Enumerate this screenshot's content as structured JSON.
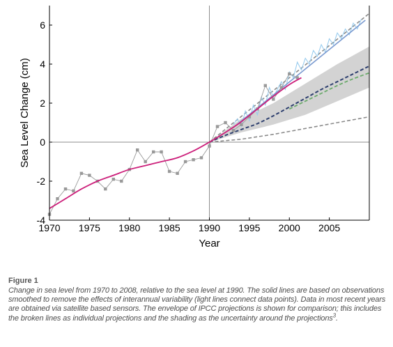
{
  "chart_data": {
    "type": "line",
    "title": "",
    "xlabel": "Year",
    "ylabel": "Sea Level Change (cm)",
    "xlim": [
      1970,
      2010
    ],
    "ylim": [
      -4,
      7
    ],
    "xticks": [
      1970,
      1975,
      1980,
      1985,
      1990,
      1995,
      2000,
      2005
    ],
    "yticks": [
      -4,
      -2,
      0,
      2,
      4,
      6
    ],
    "grid": false,
    "reference_lines": {
      "x": 1990,
      "y": 0
    },
    "colors": {
      "tide_gauge_points": "#999999",
      "tide_gauge_smoothed": "#cc1f7a",
      "satellite_data": "#99ccee",
      "satellite_trend": "#7a9ad0",
      "projection_mid": "#2d3f6e",
      "projection_green": "#6aaa6a",
      "projection_grey": "#8a8a8a",
      "uncertainty_band": "#d3d3d3"
    },
    "series": [
      {
        "type": "points",
        "x": [
          1970,
          1971,
          1972,
          1973,
          1974,
          1975,
          1976,
          1977,
          1978,
          1979,
          1980,
          1981,
          1982,
          1983,
          1984,
          1985,
          1986,
          1987,
          1988,
          1989,
          1990,
          1991,
          1992,
          1993,
          1994,
          1995,
          1996,
          1997,
          1998,
          1999,
          2000,
          2001
        ],
        "y": [
          -3.7,
          -2.9,
          -2.4,
          -2.5,
          -1.6,
          -1.7,
          -2.0,
          -2.4,
          -1.9,
          -2.0,
          -1.4,
          -0.4,
          -1.0,
          -0.5,
          -0.5,
          -1.5,
          -1.6,
          -1.0,
          -0.9,
          -0.8,
          -0.2,
          0.8,
          1.0,
          0.6,
          0.9,
          1.3,
          1.7,
          2.9,
          2.2,
          2.8,
          3.5,
          3.3
        ]
      },
      {
        "type": "smooth",
        "x": [
          1970,
          1972,
          1974,
          1976,
          1978,
          1980,
          1982,
          1984,
          1986,
          1988,
          1990,
          1992,
          1994,
          1996,
          1998,
          2000,
          2001.5
        ],
        "y": [
          -3.4,
          -2.9,
          -2.4,
          -2.0,
          -1.7,
          -1.4,
          -1.2,
          -1.0,
          -0.8,
          -0.45,
          0.0,
          0.5,
          1.05,
          1.7,
          2.35,
          2.95,
          3.3
        ]
      },
      {
        "type": "satellite",
        "x": [
          1993,
          1993.5,
          1994,
          1994.5,
          1995,
          1995.5,
          1996,
          1996.5,
          1997,
          1997.5,
          1998,
          1998.5,
          1999,
          1999.5,
          2000,
          2000.5,
          2001,
          2001.5,
          2002,
          2002.5,
          2003,
          2003.5,
          2004,
          2004.5,
          2005,
          2005.5,
          2006,
          2006.5,
          2007,
          2007.5,
          2008,
          2008.5,
          2009
        ],
        "y": [
          0.9,
          1.2,
          0.8,
          1.6,
          1.1,
          1.9,
          1.4,
          2.3,
          1.9,
          2.8,
          2.3,
          2.7,
          3.1,
          2.7,
          3.6,
          3.3,
          4.1,
          3.7,
          4.3,
          4.0,
          4.7,
          4.4,
          5.0,
          4.6,
          5.3,
          5.0,
          5.6,
          5.3,
          5.8,
          5.5,
          6.1,
          5.8,
          6.3
        ]
      },
      {
        "type": "satellite_trend",
        "x": [
          1993,
          2009.5
        ],
        "y": [
          0.75,
          6.25
        ]
      },
      {
        "type": "projection_upper_dashed",
        "x": [
          1990,
          2010
        ],
        "y": [
          0.0,
          6.6
        ]
      },
      {
        "type": "projection_mid_dashed",
        "x": [
          1990,
          1992,
          1994,
          1996,
          1998,
          2000,
          2002,
          2004,
          2006,
          2008,
          2010
        ],
        "y": [
          0.0,
          0.35,
          0.65,
          0.95,
          1.35,
          1.8,
          2.25,
          2.7,
          3.1,
          3.5,
          3.9
        ]
      },
      {
        "type": "projection_green_dashed",
        "x": [
          2000,
          2002,
          2004,
          2006,
          2008,
          2010
        ],
        "y": [
          1.7,
          2.1,
          2.5,
          2.9,
          3.25,
          3.55
        ]
      },
      {
        "type": "projection_lower_dashed",
        "x": [
          1990,
          1994,
          1998,
          2002,
          2006,
          2010
        ],
        "y": [
          0.0,
          0.15,
          0.4,
          0.7,
          1.0,
          1.3
        ]
      },
      {
        "type": "uncertainty_band",
        "x": [
          1990,
          1994,
          1998,
          2002,
          2006,
          2010
        ],
        "upper": [
          0.0,
          1.2,
          2.0,
          3.0,
          4.0,
          4.9
        ],
        "lower": [
          0.0,
          0.5,
          0.9,
          1.4,
          2.1,
          2.8
        ]
      }
    ]
  },
  "figure": {
    "label": "Figure 1",
    "caption": "Change in sea level from 1970 to 2008, relative to the sea level at 1990. The solid lines are based on observations smoothed to remove the effects of interannual variability (light lines connect data points). Data in most recent years are obtained via satellite based sensors. The envelope of IPCC projections is shown for comparison; this includes the broken lines as individual projections and the shading as the uncertainty around the projections",
    "caption_ref": "3",
    "caption_end": "."
  }
}
